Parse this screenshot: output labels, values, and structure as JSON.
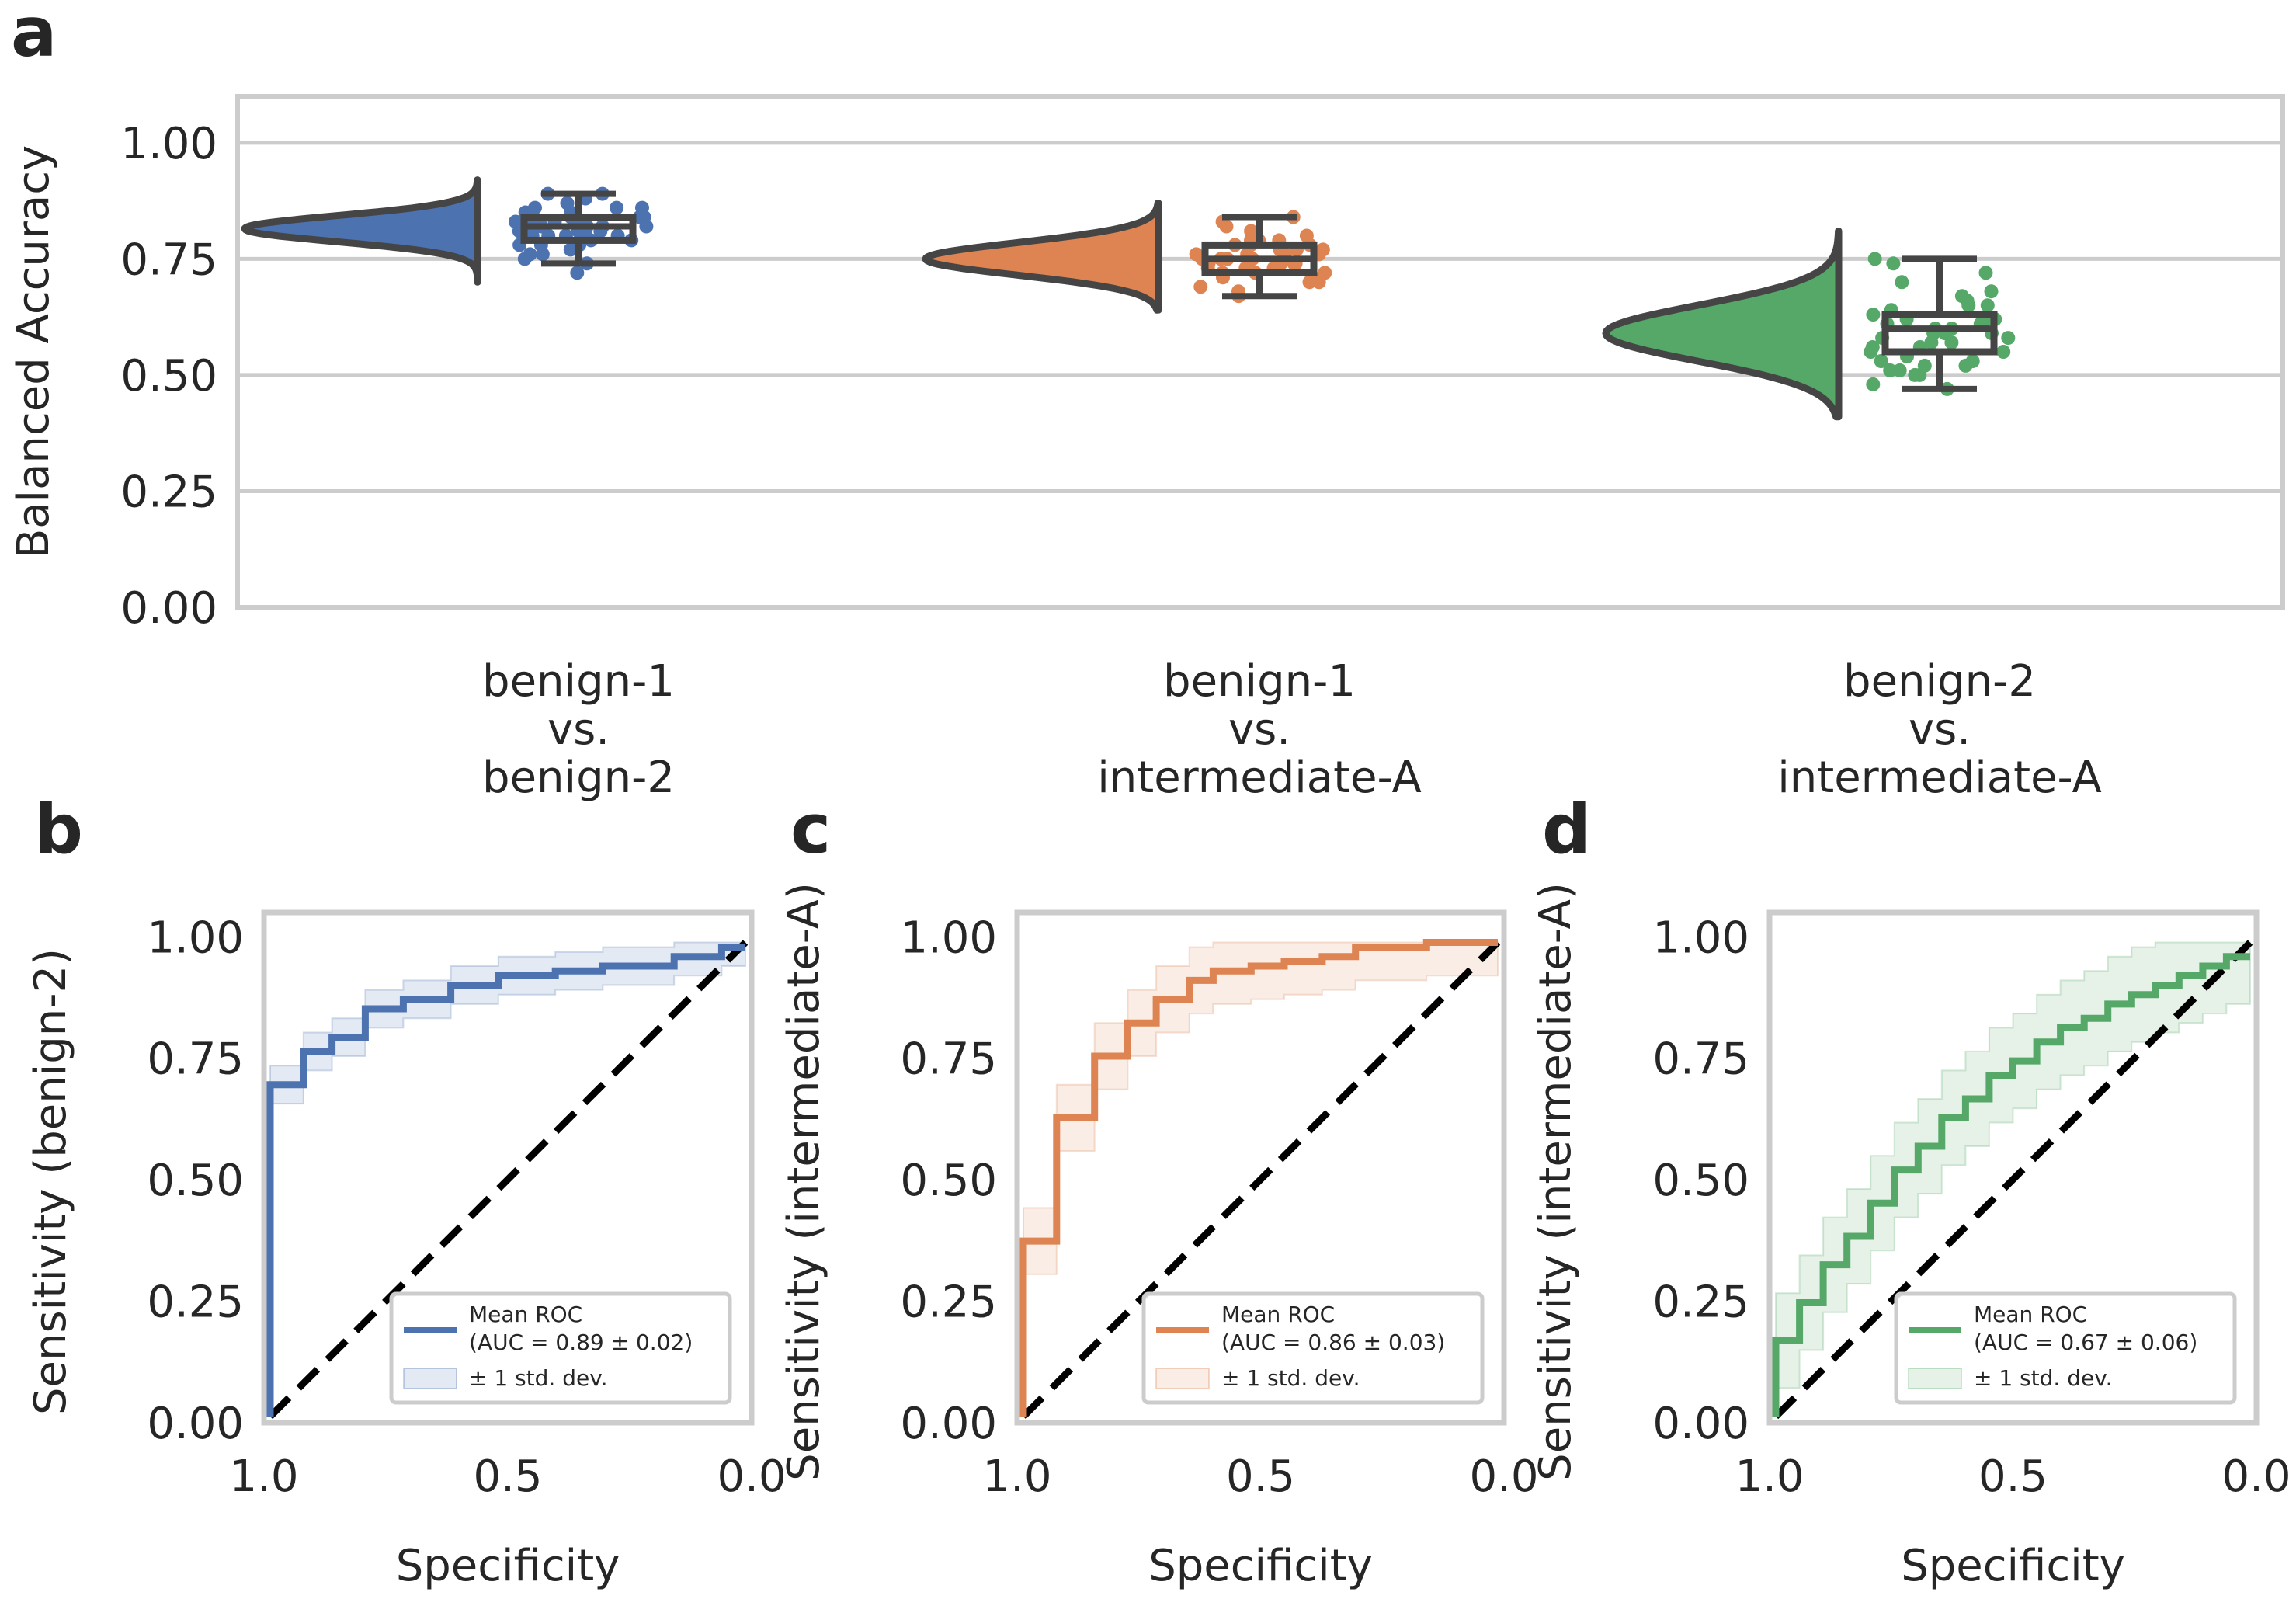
{
  "panels": {
    "a": "a",
    "b": "b",
    "c": "c",
    "d": "d"
  },
  "colors": {
    "blue": "#4c72b0",
    "orange": "#dd8452",
    "green": "#55a868",
    "box": "#454545",
    "grid": "#cccccc",
    "frame": "#cccccc"
  },
  "chart_data": [
    {
      "type": "raincloud",
      "panel": "a",
      "ylabel": "Balanced Accuracy",
      "ylim": [
        0.0,
        1.1
      ],
      "yticks": [
        "0.00",
        "0.25",
        "0.50",
        "0.75",
        "1.00"
      ],
      "ytick_values": [
        0.0,
        0.25,
        0.5,
        0.75,
        1.0
      ],
      "categories": [
        {
          "lines": [
            "benign-1",
            "vs.",
            "benign-2"
          ],
          "color": "#4c72b0",
          "violin": {
            "min": 0.7,
            "max": 0.92,
            "mode": 0.815,
            "sd": 0.028
          },
          "box": {
            "whisker_low": 0.74,
            "q1": 0.79,
            "median": 0.82,
            "q3": 0.84,
            "whisker_high": 0.89
          },
          "points": [
            0.72,
            0.74,
            0.75,
            0.76,
            0.77,
            0.78,
            0.78,
            0.79,
            0.79,
            0.8,
            0.8,
            0.8,
            0.81,
            0.81,
            0.81,
            0.82,
            0.82,
            0.82,
            0.82,
            0.83,
            0.83,
            0.83,
            0.84,
            0.84,
            0.85,
            0.85,
            0.86,
            0.86,
            0.87,
            0.88,
            0.89,
            0.89,
            0.8,
            0.82,
            0.84,
            0.78,
            0.81,
            0.83,
            0.76,
            0.86
          ]
        },
        {
          "lines": [
            "benign-1",
            "vs.",
            "intermediate-A"
          ],
          "color": "#dd8452",
          "violin": {
            "min": 0.64,
            "max": 0.87,
            "mode": 0.75,
            "sd": 0.035
          },
          "box": {
            "whisker_low": 0.67,
            "q1": 0.72,
            "median": 0.75,
            "q3": 0.78,
            "whisker_high": 0.84
          },
          "points": [
            0.67,
            0.68,
            0.69,
            0.7,
            0.71,
            0.71,
            0.72,
            0.72,
            0.73,
            0.73,
            0.74,
            0.74,
            0.74,
            0.75,
            0.75,
            0.75,
            0.76,
            0.76,
            0.76,
            0.77,
            0.77,
            0.78,
            0.78,
            0.79,
            0.79,
            0.8,
            0.8,
            0.81,
            0.82,
            0.83,
            0.84,
            0.73,
            0.75,
            0.77,
            0.7,
            0.72,
            0.76,
            0.78,
            0.74,
            0.79
          ]
        },
        {
          "lines": [
            "benign-2",
            "vs.",
            "intermediate-A"
          ],
          "color": "#55a868",
          "violin": {
            "min": 0.41,
            "max": 0.81,
            "mode": 0.59,
            "sd": 0.06
          },
          "box": {
            "whisker_low": 0.47,
            "q1": 0.55,
            "median": 0.6,
            "q3": 0.63,
            "whisker_high": 0.75
          },
          "points": [
            0.47,
            0.48,
            0.5,
            0.5,
            0.51,
            0.52,
            0.52,
            0.53,
            0.54,
            0.55,
            0.55,
            0.56,
            0.57,
            0.57,
            0.58,
            0.58,
            0.59,
            0.59,
            0.6,
            0.6,
            0.61,
            0.61,
            0.62,
            0.62,
            0.63,
            0.64,
            0.65,
            0.66,
            0.67,
            0.68,
            0.7,
            0.72,
            0.74,
            0.75,
            0.53,
            0.56,
            0.59,
            0.62,
            0.65,
            0.51
          ]
        }
      ]
    },
    {
      "type": "line",
      "panel": "b",
      "color": "#4c72b0",
      "xlabel": "Specificity",
      "ylabel": "Sensitivity (benign-2)",
      "xlim": [
        1.0,
        0.0
      ],
      "ylim": [
        0.0,
        1.05
      ],
      "xticks": [
        "1.0",
        "0.5",
        "0.0"
      ],
      "xtick_values": [
        1.0,
        0.5,
        0.0
      ],
      "yticks": [
        "0.00",
        "0.25",
        "0.50",
        "0.75",
        "1.00"
      ],
      "ytick_values": [
        0.0,
        0.25,
        0.5,
        0.75,
        1.0
      ],
      "legend": {
        "line_label_1": "Mean ROC",
        "line_label_2": "(AUC = 0.89 ± 0.02)",
        "band_label": "± 1 std. dev.",
        "position": "lower-right"
      },
      "mean_roc": {
        "specificity": [
          1.0,
          1.0,
          0.99,
          0.99,
          0.93,
          0.93,
          0.87,
          0.87,
          0.8,
          0.8,
          0.72,
          0.72,
          0.62,
          0.62,
          0.52,
          0.52,
          0.4,
          0.4,
          0.3,
          0.3,
          0.15,
          0.15,
          0.05,
          0.05,
          0.0
        ],
        "sensitivity": [
          0.0,
          0.7,
          0.7,
          0.7,
          0.7,
          0.77,
          0.77,
          0.8,
          0.8,
          0.86,
          0.86,
          0.88,
          0.88,
          0.91,
          0.91,
          0.93,
          0.93,
          0.94,
          0.94,
          0.95,
          0.95,
          0.97,
          0.97,
          0.99,
          0.99
        ]
      },
      "band": {
        "upper_offset": 0.04,
        "lower_offset": 0.04
      },
      "chance_line": [
        [
          1.0,
          0.0
        ],
        [
          0.0,
          1.0
        ]
      ]
    },
    {
      "type": "line",
      "panel": "c",
      "color": "#dd8452",
      "xlabel": "Specificity",
      "ylabel": "Sensitivity (intermediate-A)",
      "xlim": [
        1.0,
        0.0
      ],
      "ylim": [
        0.0,
        1.05
      ],
      "xticks": [
        "1.0",
        "0.5",
        "0.0"
      ],
      "xtick_values": [
        1.0,
        0.5,
        0.0
      ],
      "yticks": [
        "0.00",
        "0.25",
        "0.50",
        "0.75",
        "1.00"
      ],
      "ytick_values": [
        0.0,
        0.25,
        0.5,
        0.75,
        1.0
      ],
      "legend": {
        "line_label_1": "Mean ROC",
        "line_label_2": "(AUC = 0.86 ± 0.03)",
        "band_label": "± 1 std. dev.",
        "position": "lower-right"
      },
      "mean_roc": {
        "specificity": [
          1.0,
          1.0,
          0.93,
          0.93,
          0.85,
          0.85,
          0.78,
          0.78,
          0.72,
          0.72,
          0.65,
          0.65,
          0.6,
          0.6,
          0.52,
          0.52,
          0.45,
          0.45,
          0.37,
          0.37,
          0.3,
          0.3,
          0.15,
          0.15,
          0.0
        ],
        "sensitivity": [
          0.0,
          0.37,
          0.37,
          0.63,
          0.63,
          0.76,
          0.76,
          0.83,
          0.83,
          0.88,
          0.88,
          0.92,
          0.92,
          0.94,
          0.94,
          0.95,
          0.95,
          0.96,
          0.96,
          0.97,
          0.97,
          0.99,
          0.99,
          1.0,
          1.0
        ]
      },
      "band": {
        "upper_offset": 0.07,
        "lower_offset": 0.07
      },
      "chance_line": [
        [
          1.0,
          0.0
        ],
        [
          0.0,
          1.0
        ]
      ]
    },
    {
      "type": "line",
      "panel": "d",
      "color": "#55a868",
      "xlabel": "Specificity",
      "ylabel": "Sensitivity (intermediate-A)",
      "xlim": [
        1.0,
        0.0
      ],
      "ylim": [
        0.0,
        1.05
      ],
      "xticks": [
        "1.0",
        "0.5",
        "0.0"
      ],
      "xtick_values": [
        1.0,
        0.5,
        0.0
      ],
      "yticks": [
        "0.00",
        "0.25",
        "0.50",
        "0.75",
        "1.00"
      ],
      "ytick_values": [
        0.0,
        0.25,
        0.5,
        0.75,
        1.0
      ],
      "legend": {
        "line_label_1": "Mean ROC",
        "line_label_2": "(AUC = 0.67 ± 0.06)",
        "band_label": "± 1 std. dev.",
        "position": "lower-right"
      },
      "mean_roc": {
        "specificity": [
          1.0,
          1.0,
          0.95,
          0.95,
          0.9,
          0.9,
          0.85,
          0.85,
          0.8,
          0.8,
          0.75,
          0.75,
          0.7,
          0.7,
          0.65,
          0.65,
          0.6,
          0.6,
          0.55,
          0.55,
          0.5,
          0.5,
          0.45,
          0.45,
          0.4,
          0.4,
          0.35,
          0.35,
          0.3,
          0.3,
          0.25,
          0.25,
          0.2,
          0.2,
          0.15,
          0.15,
          0.1,
          0.1,
          0.05,
          0.05,
          0.0
        ],
        "sensitivity": [
          0.0,
          0.16,
          0.16,
          0.24,
          0.24,
          0.32,
          0.32,
          0.38,
          0.38,
          0.45,
          0.45,
          0.52,
          0.52,
          0.57,
          0.57,
          0.63,
          0.63,
          0.67,
          0.67,
          0.72,
          0.72,
          0.75,
          0.75,
          0.79,
          0.79,
          0.82,
          0.82,
          0.84,
          0.84,
          0.87,
          0.87,
          0.89,
          0.89,
          0.91,
          0.91,
          0.93,
          0.93,
          0.95,
          0.95,
          0.97,
          0.97
        ]
      },
      "band": {
        "upper_offset": 0.1,
        "lower_offset": 0.1
      },
      "chance_line": [
        [
          1.0,
          0.0
        ],
        [
          0.0,
          1.0
        ]
      ]
    }
  ]
}
